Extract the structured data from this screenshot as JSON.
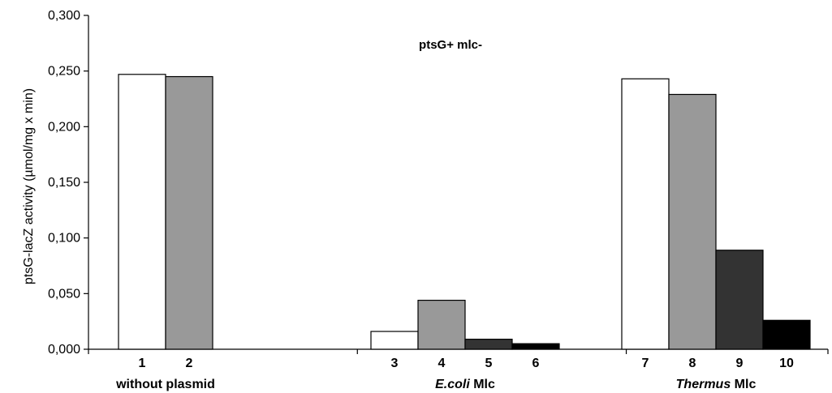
{
  "chart_data": {
    "type": "bar",
    "title": "ptsG+ mlc-",
    "ylabel": "ptsG-lacZ  activity (µmol/mg x min)",
    "xlabel": "",
    "ylim": [
      0,
      0.3
    ],
    "yticks": [
      "0,000",
      "0,050",
      "0,100",
      "0,150",
      "0,200",
      "0,250",
      "0,300"
    ],
    "grid": false,
    "groups": [
      {
        "label_parts": [
          {
            "text": "without plasmid",
            "italic": false
          }
        ],
        "bars": [
          {
            "label": "1",
            "value": 0.247,
            "color": "#ffffff"
          },
          {
            "label": "2",
            "value": 0.245,
            "color": "#999999"
          }
        ]
      },
      {
        "label_parts": [
          {
            "text": "E.coli",
            "italic": true
          },
          {
            "text": " Mlc",
            "italic": false
          }
        ],
        "bars": [
          {
            "label": "3",
            "value": 0.016,
            "color": "#ffffff"
          },
          {
            "label": "4",
            "value": 0.044,
            "color": "#999999"
          },
          {
            "label": "5",
            "value": 0.009,
            "color": "#333333"
          },
          {
            "label": "6",
            "value": 0.005,
            "color": "#000000"
          }
        ]
      },
      {
        "label_parts": [
          {
            "text": "Thermus",
            "italic": true
          },
          {
            "text": " Mlc",
            "italic": false
          }
        ],
        "bars": [
          {
            "label": "7",
            "value": 0.243,
            "color": "#ffffff"
          },
          {
            "label": "8",
            "value": 0.229,
            "color": "#999999"
          },
          {
            "label": "9",
            "value": 0.089,
            "color": "#333333"
          },
          {
            "label": "10",
            "value": 0.026,
            "color": "#000000"
          }
        ]
      }
    ]
  }
}
